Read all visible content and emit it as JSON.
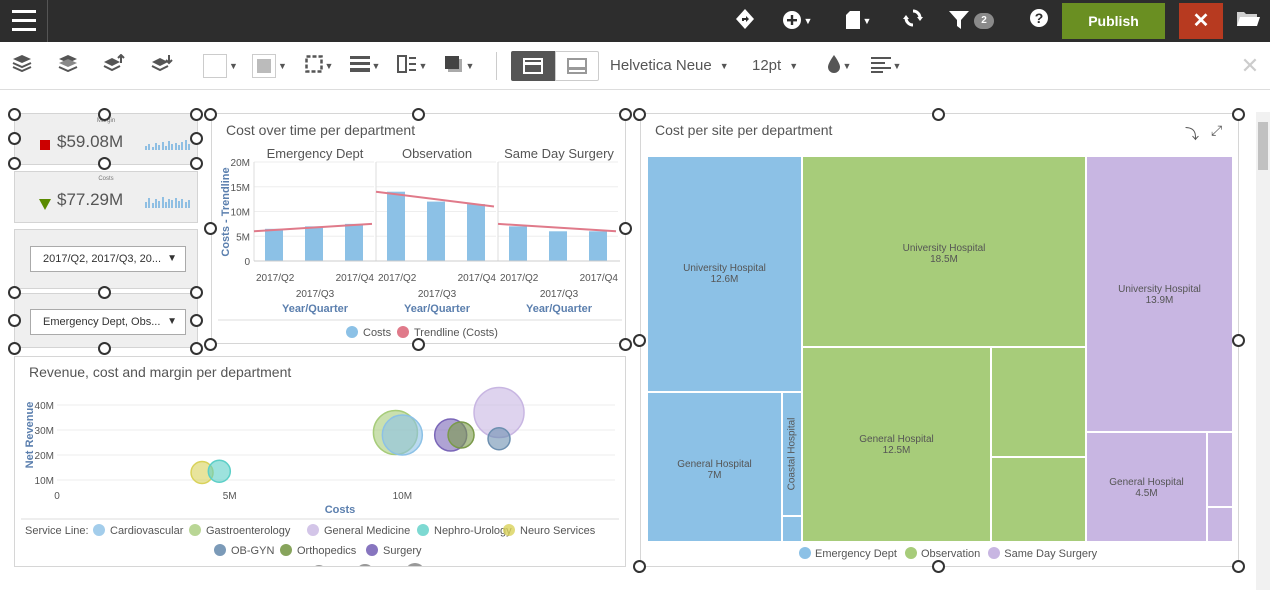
{
  "topbar": {
    "filter_count": "2",
    "publish_label": "Publish",
    "close_label": "✕"
  },
  "toolbar": {
    "font_name": "Helvetica Neue",
    "font_size": "12pt"
  },
  "kpis": [
    {
      "label": "Margin",
      "value": "$59.08M",
      "indicator_color": "#cc0000",
      "indicator": "square"
    },
    {
      "label": "Costs",
      "value": "$77.29M",
      "indicator_color": "#5a8a00",
      "indicator": "triangle-down"
    }
  ],
  "filters": [
    {
      "value": "2017/Q2, 2017/Q3, 20..."
    },
    {
      "value": "Emergency Dept, Obs..."
    }
  ],
  "cost_over_time": {
    "title": "Cost over time per department",
    "chart_data": {
      "type": "bar",
      "ylabel": "Costs - Trendline",
      "xlabel": "Year/Quarter",
      "yticks": [
        "20M",
        "15M",
        "10M",
        "5M",
        "0"
      ],
      "ylim": [
        0,
        20
      ],
      "categories": [
        "2017/Q2",
        "2017/Q3",
        "2017/Q4"
      ],
      "panels": [
        {
          "name": "Emergency Dept",
          "values": [
            6.5,
            7,
            7.5
          ],
          "trend": [
            6,
            7.5
          ]
        },
        {
          "name": "Observation",
          "values": [
            14,
            12,
            11.5
          ],
          "trend": [
            14,
            11
          ]
        },
        {
          "name": "Same Day Surgery",
          "values": [
            7,
            6,
            6
          ],
          "trend": [
            7.5,
            6
          ]
        }
      ],
      "legend": [
        "Costs",
        "Trendline (Costs)"
      ],
      "colors": {
        "bars": "#8cc1e6",
        "trend": "#e07a8a"
      }
    }
  },
  "revenue_chart": {
    "title": "Revenue, cost and margin per department",
    "chart_data": {
      "type": "scatter",
      "xlabel": "Costs",
      "ylabel": "Net Revenue",
      "xticks": [
        "0",
        "5M",
        "10M"
      ],
      "yticks": [
        "40M",
        "30M",
        "20M",
        "10M"
      ],
      "xlim": [
        0,
        15
      ],
      "ylim": [
        8,
        44
      ],
      "points": [
        {
          "series": "Neuro Services",
          "x": 4.2,
          "y": 13,
          "r": 11,
          "color": "#d9d25a"
        },
        {
          "series": "Nephro-Urology",
          "x": 4.7,
          "y": 13.5,
          "r": 11,
          "color": "#5ccfc7"
        },
        {
          "series": "Gastroenterology",
          "x": 9.8,
          "y": 29,
          "r": 22,
          "color": "#a7cc7a"
        },
        {
          "series": "Cardiovascular",
          "x": 10.0,
          "y": 28,
          "r": 20,
          "color": "#8cc1e6"
        },
        {
          "series": "Surgery",
          "x": 11.4,
          "y": 28,
          "r": 16,
          "color": "#7a66b8"
        },
        {
          "series": "Orthopedics",
          "x": 11.7,
          "y": 28,
          "r": 13,
          "color": "#7a9a4a"
        },
        {
          "series": "General Medicine",
          "x": 12.8,
          "y": 37,
          "r": 25,
          "color": "#c8b6e2"
        },
        {
          "series": "OB-GYN",
          "x": 12.8,
          "y": 26.5,
          "r": 11,
          "color": "#6d8fb0"
        }
      ],
      "legend_title": "Service Line:",
      "legend": [
        {
          "name": "Cardiovascular",
          "color": "#8cc1e6"
        },
        {
          "name": "Gastroenterology",
          "color": "#a7cc7a"
        },
        {
          "name": "General Medicine",
          "color": "#c8b6e2"
        },
        {
          "name": "Nephro-Urology",
          "color": "#5ccfc7"
        },
        {
          "name": "Neuro Services",
          "color": "#d9d25a"
        },
        {
          "name": "OB-GYN",
          "color": "#6d8fb0"
        },
        {
          "name": "Orthopedics",
          "color": "#7a9a4a"
        },
        {
          "name": "Surgery",
          "color": "#7a66b8"
        }
      ]
    }
  },
  "treemap": {
    "title": "Cost per site per department",
    "chart_data": {
      "type": "heatmap",
      "groups": [
        {
          "name": "Emergency Dept",
          "color": "#8cc1e6",
          "cells": [
            {
              "label": "University Hospital",
              "value": "12.6M"
            },
            {
              "label": "General Hospital",
              "value": "7M"
            },
            {
              "label": "Coastal Hospital",
              "value": ""
            }
          ]
        },
        {
          "name": "Observation",
          "color": "#a7cc7a",
          "cells": [
            {
              "label": "University Hospital",
              "value": "18.5M"
            },
            {
              "label": "General Hospital",
              "value": "12.5M"
            }
          ]
        },
        {
          "name": "Same Day Surgery",
          "color": "#c8b6e2",
          "cells": [
            {
              "label": "University Hospital",
              "value": "13.9M"
            },
            {
              "label": "General Hospital",
              "value": "4.5M"
            }
          ]
        }
      ],
      "legend": [
        "Emergency Dept",
        "Observation",
        "Same Day Surgery"
      ]
    }
  }
}
